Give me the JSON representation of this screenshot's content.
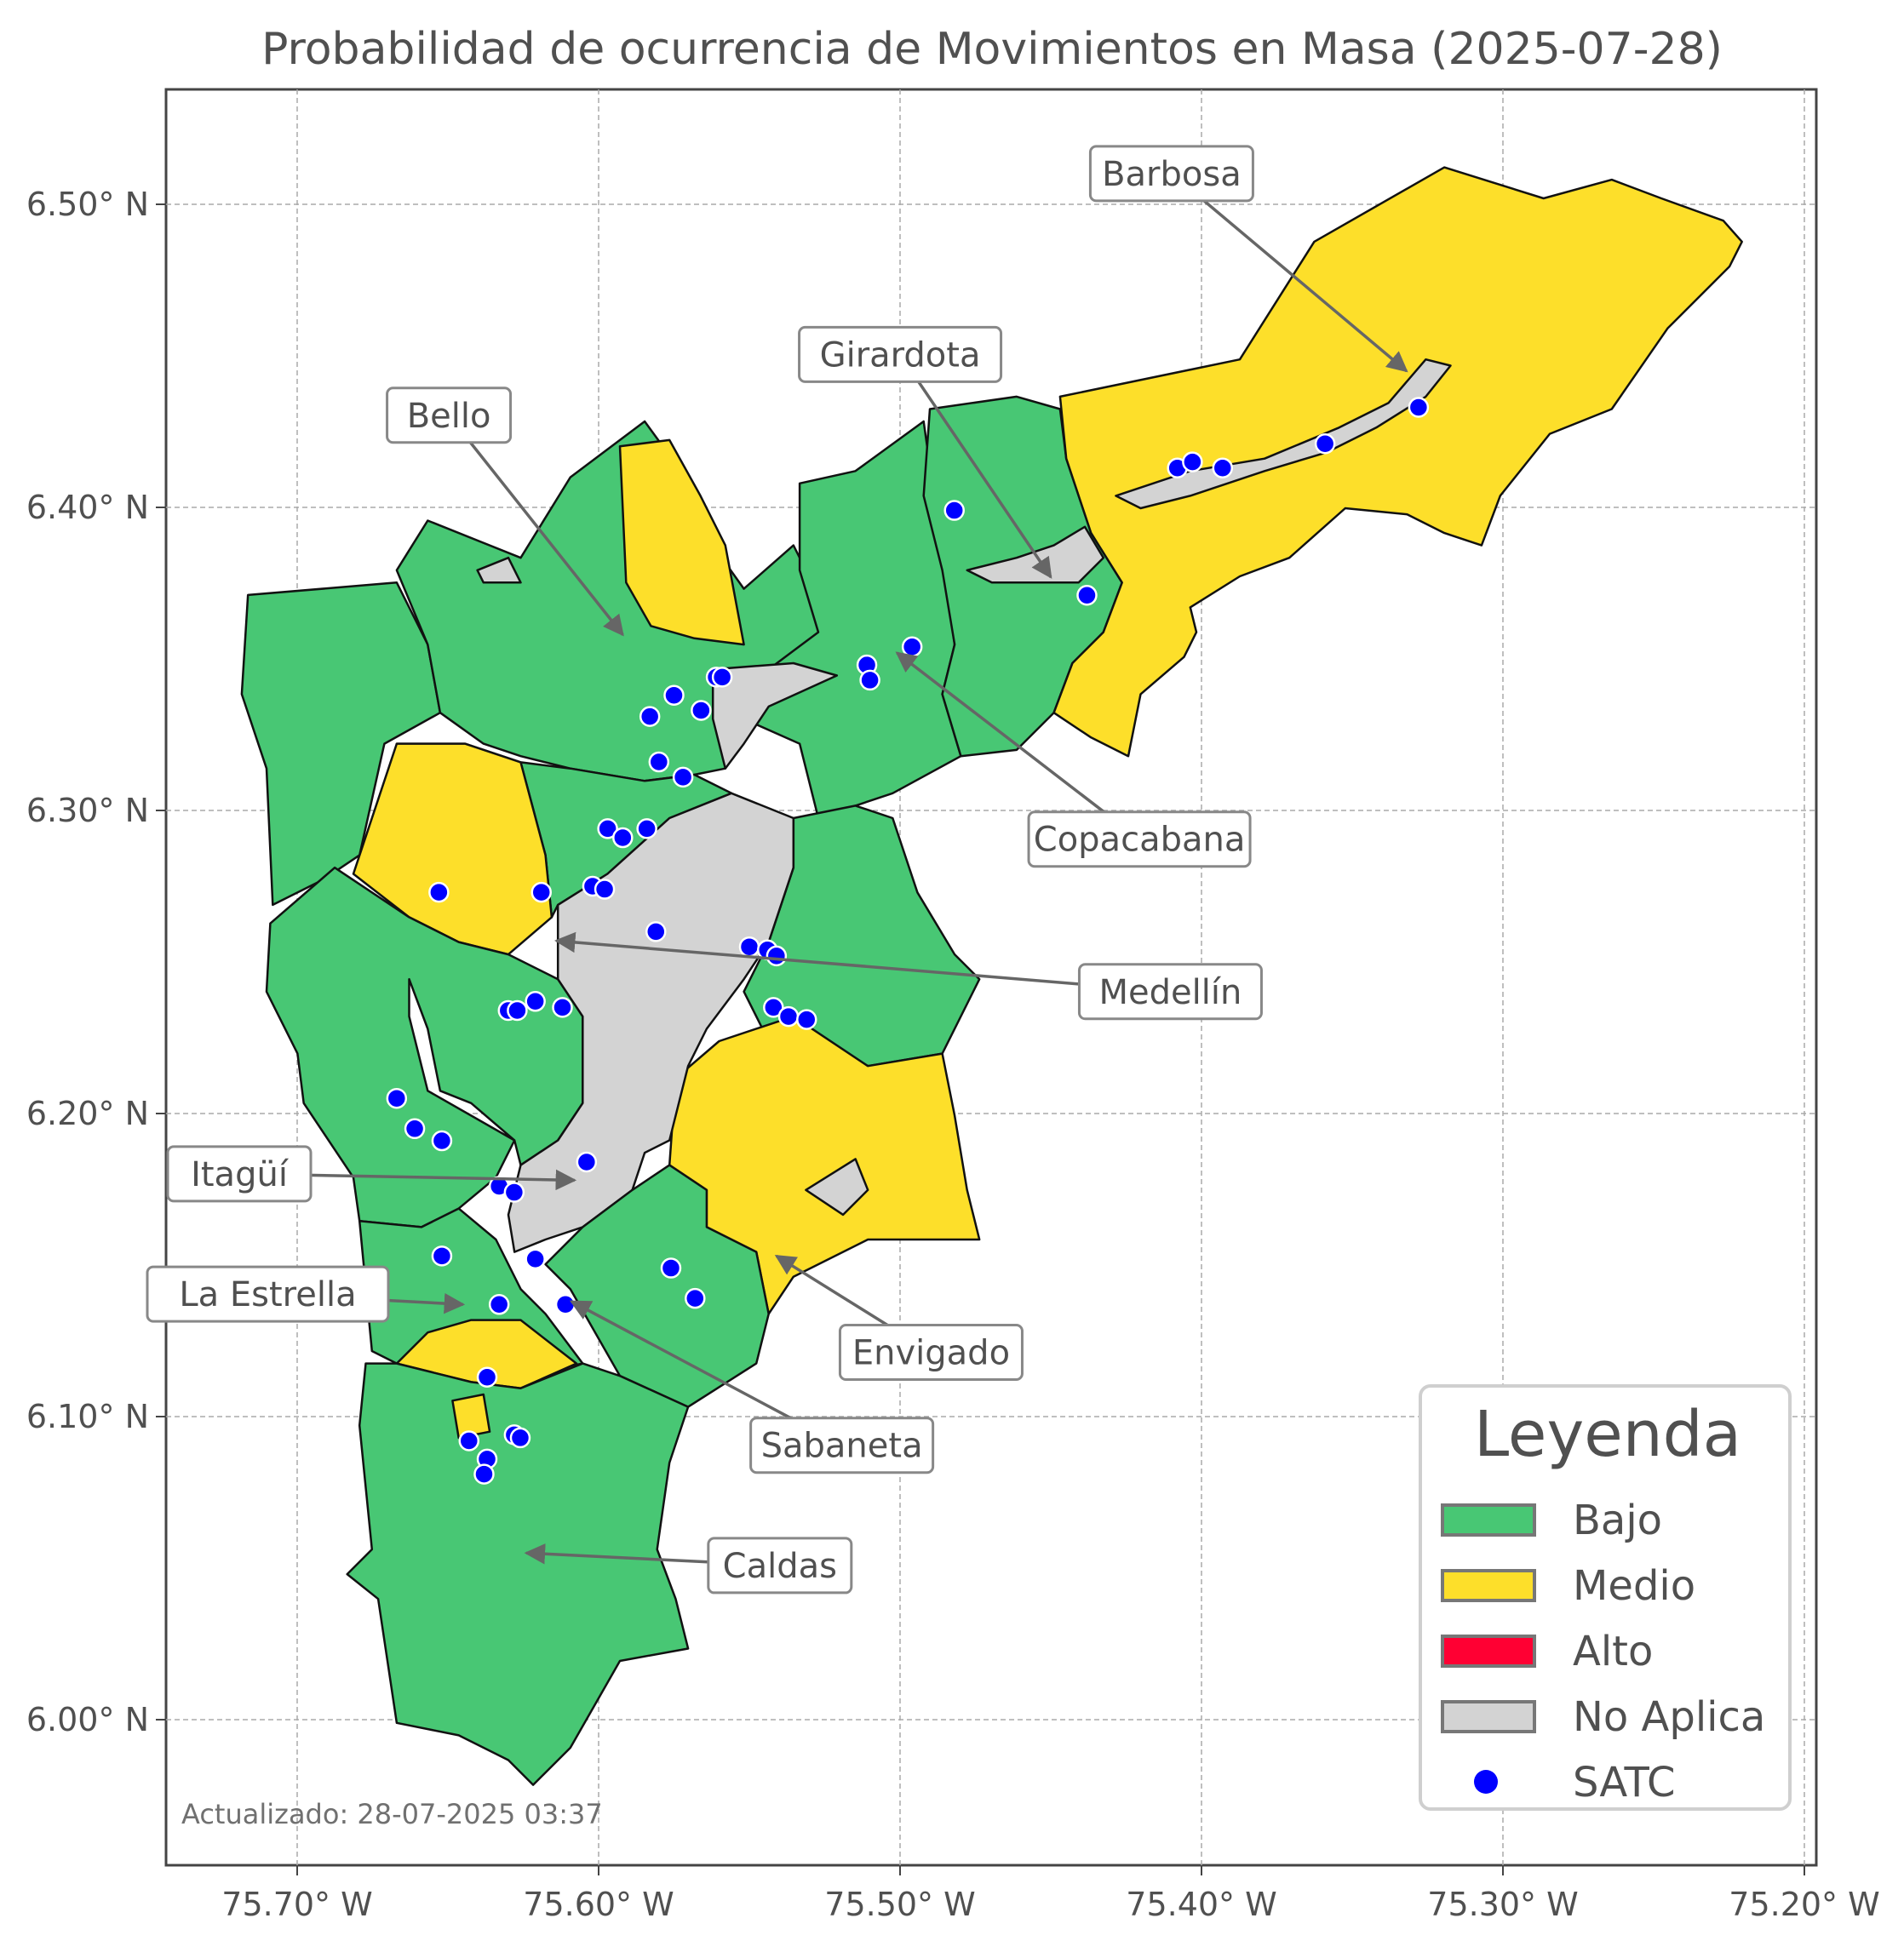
{
  "title": "Probabilidad de ocurrencia de Movimientos en Masa (2025-07-28)",
  "colors": {
    "bajo": "#48c774",
    "medio": "#fddf2a",
    "alto": "#ff0033",
    "no_aplica": "#d3d3d3",
    "satc": "#0000ff"
  },
  "axes": {
    "x_ticks": [
      {
        "value": -75.7,
        "label": "75.70° W"
      },
      {
        "value": -75.6,
        "label": "75.60° W"
      },
      {
        "value": -75.5,
        "label": "75.50° W"
      },
      {
        "value": -75.4,
        "label": "75.40° W"
      },
      {
        "value": -75.3,
        "label": "75.30° W"
      },
      {
        "value": -75.2,
        "label": "75.20° W"
      }
    ],
    "y_ticks": [
      {
        "value": 6.5,
        "label": "6.50° N"
      },
      {
        "value": 6.4,
        "label": "6.40° N"
      },
      {
        "value": 6.3,
        "label": "6.30° N"
      },
      {
        "value": 6.2,
        "label": "6.20° N"
      },
      {
        "value": 6.1,
        "label": "6.10° N"
      },
      {
        "value": 6.0,
        "label": "6.00° N"
      }
    ],
    "grid": true
  },
  "municipalities": [
    {
      "name": "Barbosa",
      "target": [
        -75.332,
        6.445
      ]
    },
    {
      "name": "Girardota",
      "target": [
        -75.45,
        6.377
      ]
    },
    {
      "name": "Bello",
      "target": [
        -75.592,
        6.358
      ]
    },
    {
      "name": "Copacabana",
      "target": [
        -75.501,
        6.352
      ]
    },
    {
      "name": "Medellín",
      "target": [
        -75.614,
        6.257
      ]
    },
    {
      "name": "Itagüí",
      "target": [
        -75.608,
        6.178
      ]
    },
    {
      "name": "La Estrella",
      "target": [
        -75.645,
        6.137
      ]
    },
    {
      "name": "Envigado",
      "target": [
        -75.541,
        6.153
      ]
    },
    {
      "name": "Sabaneta",
      "target": [
        -75.609,
        6.138
      ]
    },
    {
      "name": "Caldas",
      "target": [
        -75.624,
        6.055
      ]
    }
  ],
  "legend": {
    "title": "Leyenda",
    "items": [
      {
        "label": "Bajo",
        "color": "#48c774",
        "type": "patch"
      },
      {
        "label": "Medio",
        "color": "#fddf2a",
        "type": "patch"
      },
      {
        "label": "Alto",
        "color": "#ff0033",
        "type": "patch"
      },
      {
        "label": "No Aplica",
        "color": "#d3d3d3",
        "type": "patch"
      },
      {
        "label": "SATC",
        "color": "#0000ff",
        "type": "point"
      }
    ]
  },
  "satc_points": [
    [
      -75.482,
      6.399
    ],
    [
      -75.408,
      6.413
    ],
    [
      -75.403,
      6.415
    ],
    [
      -75.393,
      6.413
    ],
    [
      -75.359,
      6.421
    ],
    [
      -75.328,
      6.433
    ],
    [
      -75.438,
      6.371
    ],
    [
      -75.496,
      6.354
    ],
    [
      -75.511,
      6.348
    ],
    [
      -75.51,
      6.343
    ],
    [
      -75.561,
      6.344
    ],
    [
      -75.559,
      6.344
    ],
    [
      -75.575,
      6.338
    ],
    [
      -75.566,
      6.333
    ],
    [
      -75.583,
      6.331
    ],
    [
      -75.58,
      6.316
    ],
    [
      -75.572,
      6.311
    ],
    [
      -75.597,
      6.294
    ],
    [
      -75.592,
      6.291
    ],
    [
      -75.584,
      6.294
    ],
    [
      -75.653,
      6.273
    ],
    [
      -75.619,
      6.273
    ],
    [
      -75.602,
      6.275
    ],
    [
      -75.598,
      6.274
    ],
    [
      -75.581,
      6.26
    ],
    [
      -75.55,
      6.255
    ],
    [
      -75.544,
      6.254
    ],
    [
      -75.541,
      6.252
    ],
    [
      -75.542,
      6.235
    ],
    [
      -75.537,
      6.232
    ],
    [
      -75.531,
      6.231
    ],
    [
      -75.63,
      6.234
    ],
    [
      -75.627,
      6.234
    ],
    [
      -75.621,
      6.237
    ],
    [
      -75.612,
      6.235
    ],
    [
      -75.667,
      6.205
    ],
    [
      -75.661,
      6.195
    ],
    [
      -75.652,
      6.191
    ],
    [
      -75.604,
      6.184
    ],
    [
      -75.633,
      6.176
    ],
    [
      -75.628,
      6.174
    ],
    [
      -75.652,
      6.153
    ],
    [
      -75.621,
      6.152
    ],
    [
      -75.576,
      6.149
    ],
    [
      -75.568,
      6.139
    ],
    [
      -75.633,
      6.137
    ],
    [
      -75.611,
      6.137
    ],
    [
      -75.637,
      6.113
    ],
    [
      -75.643,
      6.092
    ],
    [
      -75.628,
      6.094
    ],
    [
      -75.626,
      6.093
    ],
    [
      -75.637,
      6.086
    ],
    [
      -75.638,
      6.081
    ]
  ],
  "footnote": "Actualizado: 28-07-2025 03:37"
}
